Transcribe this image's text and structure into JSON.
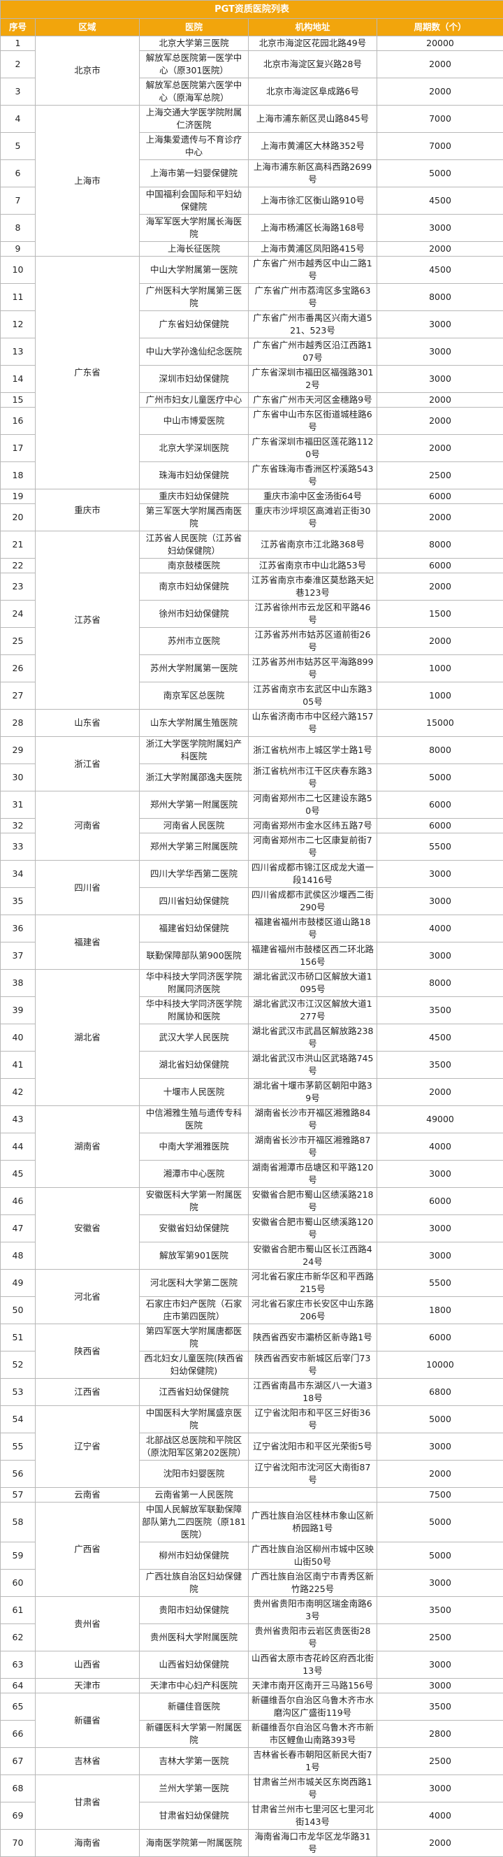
{
  "table": {
    "title": "PGT资质医院列表",
    "header": [
      "序号",
      "区域",
      "医院",
      "机构地址",
      "周期数（个）"
    ],
    "rows": [
      [
        1,
        "北京市",
        "北京大学第三医院",
        "北京市海淀区花园北路49号",
        20000
      ],
      [
        2,
        null,
        "解放军总医院第一医学中心（原301医院）",
        "北京市海淀区复兴路28号",
        2000
      ],
      [
        3,
        null,
        "解放军总医院第六医学中心（原海军总院）",
        "北京市海淀区阜成路6号",
        2000
      ],
      [
        4,
        "上海市",
        "上海交通大学医学院附属仁济医院",
        "上海市浦东新区灵山路845号",
        7000
      ],
      [
        5,
        null,
        "上海集爱遗传与不育诊疗中心",
        "上海市黄浦区大林路352号",
        7000
      ],
      [
        6,
        null,
        "上海市第一妇婴保健院",
        "上海市浦东新区高科西路2699号",
        5000
      ],
      [
        7,
        null,
        "中国福利会国际和平妇幼保健院",
        "上海市徐汇区衡山路910号",
        4500
      ],
      [
        8,
        null,
        "海军军医大学附属长海医院",
        "上海市杨浦区长海路168号",
        3000
      ],
      [
        9,
        null,
        "上海长征医院",
        "上海市黄浦区凤阳路415号",
        2000
      ],
      [
        10,
        "广东省",
        "中山大学附属第一医院",
        "广东省广州市越秀区中山二路1号",
        4500
      ],
      [
        11,
        null,
        "广州医科大学附属第三医院",
        "广东省广州市荔湾区多宝路63号",
        8000
      ],
      [
        12,
        null,
        "广东省妇幼保健院",
        "广东省广州市番禺区兴南大道521、523号",
        3000
      ],
      [
        13,
        null,
        "中山大学孙逸仙纪念医院",
        "广东省广州市越秀区沿江西路107号",
        3000
      ],
      [
        14,
        null,
        "深圳市妇幼保健院",
        "广东省深圳市福田区福强路3012号",
        3000
      ],
      [
        15,
        null,
        "广州市妇女儿童医疗中心",
        "广东省广州市天河区金穗路9号",
        2000
      ],
      [
        16,
        null,
        "中山市博爱医院",
        "广东省中山市东区街道城桂路6号",
        2000
      ],
      [
        17,
        null,
        "北京大学深圳医院",
        "广东省深圳市福田区莲花路1120号",
        2000
      ],
      [
        18,
        null,
        "珠海市妇幼保健院",
        "广东省珠海市香洲区柠溪路543号",
        2500
      ],
      [
        19,
        "重庆市",
        "重庆市妇幼保健院",
        "重庆市渝中区金汤街64号",
        6000
      ],
      [
        20,
        null,
        "第三军医大学附属西南医院",
        "重庆市沙坪坝区高滩岩正街30号",
        2000
      ],
      [
        21,
        "江苏省",
        "江苏省人民医院（江苏省妇幼保健院）",
        "江苏省南京市江北路368号",
        8000
      ],
      [
        22,
        null,
        "南京鼓楼医院",
        "江苏省南京市中山北路53号",
        6000
      ],
      [
        23,
        null,
        "南京市妇幼保健院",
        "江苏省南京市秦淮区莫愁路天妃巷123号",
        2000
      ],
      [
        24,
        null,
        "徐州市妇幼保健院",
        "江苏省徐州市云龙区和平路46号",
        1500
      ],
      [
        25,
        null,
        "苏州市立医院",
        "江苏省苏州市姑苏区道前街26号",
        2000
      ],
      [
        26,
        null,
        "苏州大学附属第一医院",
        "江苏省苏州市姑苏区平海路899号",
        1000
      ],
      [
        27,
        null,
        "南京军区总医院",
        "江苏省南京市玄武区中山东路305号",
        1000
      ],
      [
        28,
        "山东省",
        "山东大学附属生殖医院",
        "山东省济南市市中区经六路157号",
        15000
      ],
      [
        29,
        "浙江省",
        "浙江大学医学院附属妇产科医院",
        "浙江省杭州市上城区学士路1号",
        8000
      ],
      [
        30,
        null,
        "浙江大学附属邵逸夫医院",
        "浙江省杭州市江干区庆春东路3号",
        5000
      ],
      [
        31,
        "河南省",
        "郑州大学第一附属医院",
        "河南省郑州市二七区建设东路50号",
        6000
      ],
      [
        32,
        null,
        "河南省人民医院",
        "河南省郑州市金水区纬五路7号",
        6000
      ],
      [
        33,
        null,
        "郑州大学第三附属医院",
        "河南省郑州市二七区康复前街7号",
        5500
      ],
      [
        34,
        "四川省",
        "四川大学华西第二医院",
        "四川省成都市锦江区成龙大道一段1416号",
        3000
      ],
      [
        35,
        null,
        "四川省妇幼保健院",
        "四川省成都市武侯区沙堰西二街290号",
        3000
      ],
      [
        36,
        "福建省",
        "福建省妇幼保健院",
        "福建省福州市鼓楼区道山路18号",
        4000
      ],
      [
        37,
        null,
        "联勤保障部队第900医院",
        "福建省福州市鼓楼区西二环北路156号",
        3000
      ],
      [
        38,
        "湖北省",
        "华中科技大学同济医学院附属同济医院",
        "湖北省武汉市硚口区解放大道1095号",
        8000
      ],
      [
        39,
        null,
        "华中科技大学同济医学院附属协和医院",
        "湖北省武汉市江汉区解放大道1277号",
        3500
      ],
      [
        40,
        null,
        "武汉大学人民医院",
        "湖北省武汉市武昌区解放路238号",
        4500
      ],
      [
        41,
        null,
        "湖北省妇幼保健院",
        "湖北省武汉市洪山区武珞路745号",
        3500
      ],
      [
        42,
        null,
        "十堰市人民医院",
        "湖北省十堰市茅箭区朝阳中路39号",
        2000
      ],
      [
        43,
        "湖南省",
        "中信湘雅生殖与遗传专科医院",
        "湖南省长沙市开福区湘雅路84号",
        49000
      ],
      [
        44,
        null,
        "中南大学湘雅医院",
        "湖南省长沙市开福区湘雅路87号",
        4000
      ],
      [
        45,
        null,
        "湘潭市中心医院",
        "湖南省湘潭市岳塘区和平路120号",
        3000
      ],
      [
        46,
        "安徽省",
        "安徽医科大学第一附属医院",
        "安徽省合肥市蜀山区绩溪路218号",
        6000
      ],
      [
        47,
        null,
        "安徽省妇幼保健院",
        "安徽省合肥市蜀山区绩溪路120号",
        3000
      ],
      [
        48,
        null,
        "解放军第901医院",
        "安徽省合肥市蜀山区长江西路424号",
        3000
      ],
      [
        49,
        "河北省",
        "河北医科大学第二医院",
        "河北省石家庄市新华区和平西路215号",
        5500
      ],
      [
        50,
        null,
        "石家庄市妇产医院（石家庄市第四医院）",
        "河北省石家庄市长安区中山东路206号",
        1800
      ],
      [
        51,
        "陕西省",
        "第四军医大学附属唐都医院",
        "陕西省西安市灞桥区新寺路1号",
        6000
      ],
      [
        52,
        null,
        "西北妇女儿童医院(陕西省妇幼保健院)",
        "陕西省西安市新城区后宰门73号",
        10000
      ],
      [
        53,
        "江西省",
        "江西省妇幼保健院",
        "江西省南昌市东湖区八一大道318号",
        6800
      ],
      [
        54,
        "辽宁省",
        "中国医科大学附属盛京医院",
        "辽宁省沈阳市和平区三好街36号",
        5000
      ],
      [
        55,
        null,
        "北部战区总医院和平院区（原沈阳军区第202医院）",
        "辽宁省沈阳市和平区光荣街5号",
        3000
      ],
      [
        56,
        null,
        "沈阳市妇婴医院",
        "辽宁省沈阳市沈河区大南街87号",
        2000
      ],
      [
        57,
        "云南省",
        "云南省第一人民医院",
        null,
        7500
      ],
      [
        58,
        "广西省",
        "中国人民解放军联勤保障部队第九二四医院（原181医院）",
        "广西壮族自治区桂林市象山区新桥园路1号",
        5000
      ],
      [
        59,
        null,
        "柳州市妇幼保健院",
        "广西壮族自治区柳州市城中区映山街50号",
        5000
      ],
      [
        60,
        null,
        "广西壮族自治区妇幼保健院",
        "广西壮族自治区南宁市青秀区新竹路225号",
        3000
      ],
      [
        61,
        "贵州省",
        "贵阳市妇幼保健院",
        "贵州省贵阳市南明区瑞金南路63号",
        3500
      ],
      [
        62,
        null,
        "贵州医科大学附属医院",
        "贵州省贵阳市云岩区贵医街28号",
        2500
      ],
      [
        63,
        "山西省",
        "山西省妇幼保健院",
        "山西省太原市杏花岭区府西北街13号",
        3000
      ],
      [
        64,
        "天津市",
        "天津市中心妇产科医院",
        "天津市南开区南开三马路156号",
        3000
      ],
      [
        65,
        "新疆省",
        "新疆佳音医院",
        "新疆维吾尔自治区乌鲁木齐市水磨沟区广盛街119号",
        3500
      ],
      [
        66,
        null,
        "新疆医科大学第一附属医院",
        "新疆维吾尔自治区乌鲁木齐市新市区鲤鱼山南路393号",
        2800
      ],
      [
        67,
        "吉林省",
        "吉林大学第一医院",
        "吉林省长春市朝阳区新民大街71号",
        2500
      ],
      [
        68,
        "甘肃省",
        "兰州大学第一医院",
        "甘肃省兰州市城关区东岗西路1号",
        3000
      ],
      [
        69,
        null,
        "甘肃省妇幼保健院",
        "甘肃省兰州市七里河区七里河北街143号",
        4000
      ],
      [
        70,
        "海南省",
        "海南医学院第一附属医院",
        "海南省海口市龙华区龙华路31号",
        2000
      ]
    ]
  }
}
